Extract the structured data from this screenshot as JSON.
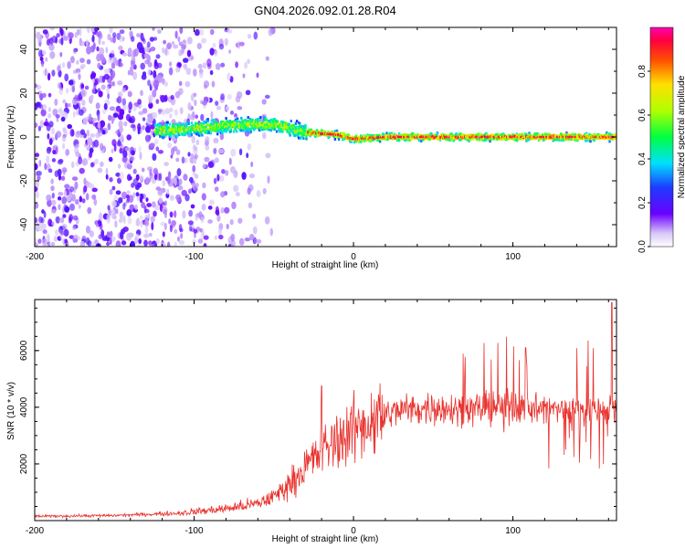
{
  "title": "GN04.2026.092.01.28.R04",
  "chart_data": [
    {
      "type": "heatmap",
      "name": "spectrogram",
      "xlabel": "Height of straight line (km)",
      "ylabel": "Frequency (Hz)",
      "xlim": [
        -200,
        165
      ],
      "ylim": [
        -50,
        50
      ],
      "xticks": [
        -200,
        -100,
        0,
        100
      ],
      "yticks": [
        -40,
        -20,
        0,
        20,
        40
      ],
      "signal_track": [
        {
          "x": -120,
          "y": 3
        },
        {
          "x": -100,
          "y": 4
        },
        {
          "x": -80,
          "y": 5
        },
        {
          "x": -60,
          "y": 6
        },
        {
          "x": -45,
          "y": 5
        },
        {
          "x": -30,
          "y": 2
        },
        {
          "x": -10,
          "y": 1
        },
        {
          "x": 0,
          "y": -1
        },
        {
          "x": 20,
          "y": 0
        },
        {
          "x": 60,
          "y": 0
        },
        {
          "x": 100,
          "y": 0
        },
        {
          "x": 130,
          "y": 0
        },
        {
          "x": 165,
          "y": 0
        }
      ],
      "noise_region": [
        -200,
        -55
      ],
      "colorbar": {
        "label": "Normalized spectral amplitude",
        "range": [
          0.0,
          1.0
        ],
        "ticks": [
          0.0,
          0.2,
          0.4,
          0.6,
          0.8
        ]
      }
    },
    {
      "type": "line",
      "name": "snr",
      "xlabel": "Height of straight line (km)",
      "ylabel": "SNR (10 * v/v)",
      "xlim": [
        -200,
        165
      ],
      "ylim": [
        0,
        7800
      ],
      "xticks": [
        -200,
        -100,
        0,
        100
      ],
      "yticks": [
        2000,
        4000,
        6000
      ],
      "color": "#e8332e",
      "trend": [
        {
          "x": -200,
          "y": 150
        },
        {
          "x": -150,
          "y": 180
        },
        {
          "x": -110,
          "y": 260
        },
        {
          "x": -80,
          "y": 420
        },
        {
          "x": -60,
          "y": 600
        },
        {
          "x": -50,
          "y": 850
        },
        {
          "x": -40,
          "y": 1300
        },
        {
          "x": -30,
          "y": 1900
        },
        {
          "x": -20,
          "y": 2450
        },
        {
          "x": -10,
          "y": 2850
        },
        {
          "x": 0,
          "y": 3200
        },
        {
          "x": 10,
          "y": 3500
        },
        {
          "x": 20,
          "y": 3750
        },
        {
          "x": 30,
          "y": 3900
        },
        {
          "x": 50,
          "y": 3980
        },
        {
          "x": 80,
          "y": 3950
        },
        {
          "x": 100,
          "y": 4000
        },
        {
          "x": 120,
          "y": 3950
        },
        {
          "x": 140,
          "y": 3900
        },
        {
          "x": 165,
          "y": 3950
        }
      ],
      "peaks": [
        {
          "x": -20,
          "y": 4750
        },
        {
          "x": 108,
          "y": 6100
        },
        {
          "x": 162,
          "y": 7700
        }
      ]
    }
  ]
}
